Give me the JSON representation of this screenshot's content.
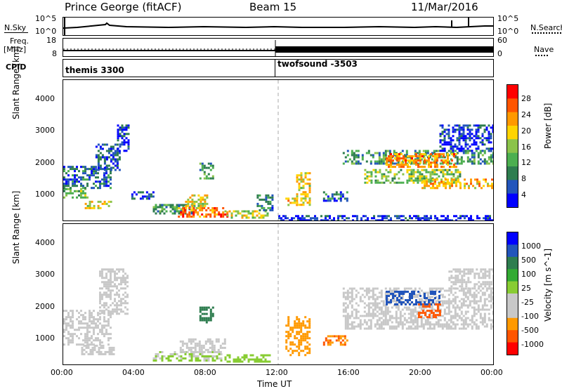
{
  "header": {
    "station": "Prince George (fitACF)",
    "beam": "Beam 15",
    "date": "11/Mar/2016"
  },
  "strip_labels": {
    "nsky": "N.Sky",
    "nsearch": "N.Search",
    "freq": "Freq.",
    "freq_unit": "[MHz]",
    "nave": "Nave",
    "cpid": "CPID",
    "noise_top": "10^5",
    "noise_bottom": "10^0",
    "freq_top": "18",
    "freq_bottom": "8",
    "nave_top": "60",
    "nave_bottom": "0"
  },
  "cpid_blocks": [
    {
      "label": "themis 3300",
      "start_hour": 0
    },
    {
      "label": "twofsound -3503",
      "start_hour": 12
    }
  ],
  "xaxis": {
    "title": "Time UT",
    "ticks": [
      "00:00",
      "04:00",
      "08:00",
      "12:00",
      "16:00",
      "20:00",
      "00:00"
    ]
  },
  "colors": {
    "power": [
      "#0000ff",
      "#2255bb",
      "#2e7d4f",
      "#4caf50",
      "#8bc34a",
      "#ffd400",
      "#ff9900",
      "#ff5500",
      "#ff0000"
    ],
    "velocity": [
      "#ff0000",
      "#ff5500",
      "#ff9900",
      "#c8c8c8",
      "#c8c8c8",
      "#88cc33",
      "#33aa33",
      "#2e7d4f",
      "#2255bb",
      "#0000ff"
    ]
  },
  "chart_data": [
    {
      "type": "heatmap",
      "name": "power",
      "xlabel": "Time UT",
      "ylabel": "Slant Range [km]",
      "xlim": [
        0,
        24
      ],
      "ylim": [
        180,
        4600
      ],
      "yticks": [
        "1000",
        "2000",
        "3000",
        "4000"
      ],
      "colorbar": {
        "label": "Power [dB]",
        "ticks": [
          "4",
          "8",
          "12",
          "16",
          "20",
          "24",
          "28"
        ],
        "range": [
          0,
          30
        ]
      },
      "regions": [
        {
          "t0": 0.0,
          "t1": 1.4,
          "r0": 900,
          "r1": 1200,
          "value": 14
        },
        {
          "t0": 0.0,
          "t1": 2.6,
          "r0": 1200,
          "r1": 1900,
          "value": 6
        },
        {
          "t0": 1.2,
          "t1": 2.8,
          "r0": 550,
          "r1": 800,
          "value": 18
        },
        {
          "t0": 1.8,
          "t1": 3.2,
          "r0": 1800,
          "r1": 2600,
          "value": 5
        },
        {
          "t0": 3.0,
          "t1": 3.6,
          "r0": 2400,
          "r1": 3200,
          "value": 4
        },
        {
          "t0": 3.8,
          "t1": 5.0,
          "r0": 900,
          "r1": 1100,
          "value": 5
        },
        {
          "t0": 5.0,
          "t1": 7.2,
          "r0": 400,
          "r1": 700,
          "value": 10
        },
        {
          "t0": 6.4,
          "t1": 9.2,
          "r0": 300,
          "r1": 600,
          "value": 24
        },
        {
          "t0": 6.8,
          "t1": 8.0,
          "r0": 600,
          "r1": 1000,
          "value": 18
        },
        {
          "t0": 7.6,
          "t1": 8.4,
          "r0": 1500,
          "r1": 2000,
          "value": 10
        },
        {
          "t0": 9.0,
          "t1": 11.4,
          "r0": 280,
          "r1": 500,
          "value": 16
        },
        {
          "t0": 10.8,
          "t1": 11.7,
          "r0": 500,
          "r1": 1000,
          "value": 8
        },
        {
          "t0": 12.4,
          "t1": 13.0,
          "r0": 700,
          "r1": 900,
          "value": 20
        },
        {
          "t0": 13.0,
          "t1": 13.8,
          "r0": 700,
          "r1": 1700,
          "value": 18
        },
        {
          "t0": 14.5,
          "t1": 15.8,
          "r0": 800,
          "r1": 1100,
          "value": 6
        },
        {
          "t0": 15.6,
          "t1": 24.0,
          "r0": 2000,
          "r1": 2400,
          "value": 10
        },
        {
          "t0": 16.8,
          "t1": 22.2,
          "r0": 1400,
          "r1": 1800,
          "value": 14
        },
        {
          "t0": 18.0,
          "t1": 22.0,
          "r0": 1900,
          "r1": 2300,
          "value": 22
        },
        {
          "t0": 20.0,
          "t1": 24.0,
          "r0": 1200,
          "r1": 1500,
          "value": 20
        },
        {
          "t0": 21.0,
          "t1": 24.0,
          "r0": 2400,
          "r1": 3200,
          "value": 4
        },
        {
          "t0": 12.0,
          "t1": 24.0,
          "r0": 180,
          "r1": 350,
          "value": 3
        }
      ]
    },
    {
      "type": "heatmap",
      "name": "velocity",
      "xlabel": "Time UT",
      "ylabel": "Slant Range [km]",
      "xlim": [
        0,
        24
      ],
      "ylim": [
        180,
        4600
      ],
      "yticks": [
        "1000",
        "2000",
        "3000",
        "4000"
      ],
      "colorbar": {
        "label": "Velocity [m s^-1]",
        "ticks": [
          "1000",
          "500",
          "100",
          "25",
          "-25",
          "-100",
          "-500",
          "-1000"
        ]
      },
      "regions": [
        {
          "t0": 0.0,
          "t1": 2.6,
          "r0": 800,
          "r1": 1900,
          "value": 0
        },
        {
          "t0": 1.0,
          "t1": 2.8,
          "r0": 500,
          "r1": 800,
          "value": 0
        },
        {
          "t0": 2.0,
          "t1": 3.6,
          "r0": 1800,
          "r1": 3200,
          "value": 0
        },
        {
          "t0": 5.0,
          "t1": 9.0,
          "r0": 300,
          "r1": 600,
          "value": 60
        },
        {
          "t0": 6.5,
          "t1": 9.0,
          "r0": 600,
          "r1": 1000,
          "value": 0
        },
        {
          "t0": 7.6,
          "t1": 8.4,
          "r0": 1500,
          "r1": 2000,
          "value": 300
        },
        {
          "t0": 9.0,
          "t1": 11.5,
          "r0": 280,
          "r1": 500,
          "value": 80
        },
        {
          "t0": 12.4,
          "t1": 13.8,
          "r0": 500,
          "r1": 1700,
          "value": -80
        },
        {
          "t0": 14.5,
          "t1": 15.8,
          "r0": 800,
          "r1": 1100,
          "value": -300
        },
        {
          "t0": 15.6,
          "t1": 24.0,
          "r0": 1300,
          "r1": 2600,
          "value": 0
        },
        {
          "t0": 18.0,
          "t1": 21.0,
          "r0": 2100,
          "r1": 2500,
          "value": 700
        },
        {
          "t0": 19.8,
          "t1": 21.2,
          "r0": 1700,
          "r1": 2100,
          "value": -600
        },
        {
          "t0": 21.5,
          "t1": 24.0,
          "r0": 2600,
          "r1": 3200,
          "value": 0
        }
      ]
    }
  ]
}
